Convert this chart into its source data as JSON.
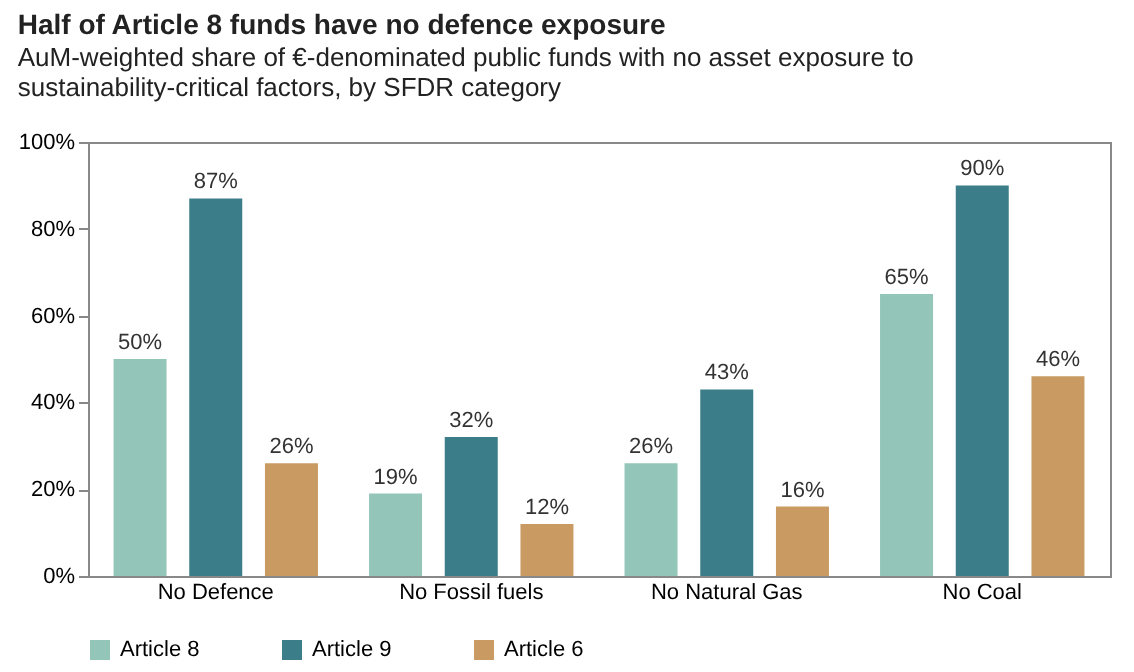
{
  "chart_data": {
    "type": "bar",
    "title": "Half of Article 8 funds have no defence exposure",
    "subtitle": "AuM-weighted share of €-denominated public funds with no asset exposure to sustainability-critical factors, by SFDR category",
    "categories": [
      "No Defence",
      "No Fossil fuels",
      "No Natural Gas",
      "No Coal"
    ],
    "series": [
      {
        "name": "Article 8",
        "color": "#93c6b8",
        "values": [
          50,
          19,
          26,
          65
        ],
        "value_labels": [
          "50%",
          "19%",
          "26%",
          "65%"
        ]
      },
      {
        "name": "Article 9",
        "color": "#3b7d88",
        "values": [
          87,
          32,
          43,
          90
        ],
        "value_labels": [
          "87%",
          "32%",
          "43%",
          "90%"
        ]
      },
      {
        "name": "Article 6",
        "color": "#c99a62",
        "values": [
          26,
          12,
          16,
          46
        ],
        "value_labels": [
          "26%",
          "12%",
          "16%",
          "46%"
        ]
      }
    ],
    "ylim": [
      0,
      100
    ],
    "yticks": [
      {
        "value": 0,
        "label": "0%"
      },
      {
        "value": 20,
        "label": "20%"
      },
      {
        "value": 40,
        "label": "40%"
      },
      {
        "value": 60,
        "label": "60%"
      },
      {
        "value": 80,
        "label": "80%"
      },
      {
        "value": 100,
        "label": "100%"
      }
    ],
    "grid": false,
    "legend": "bottom"
  }
}
